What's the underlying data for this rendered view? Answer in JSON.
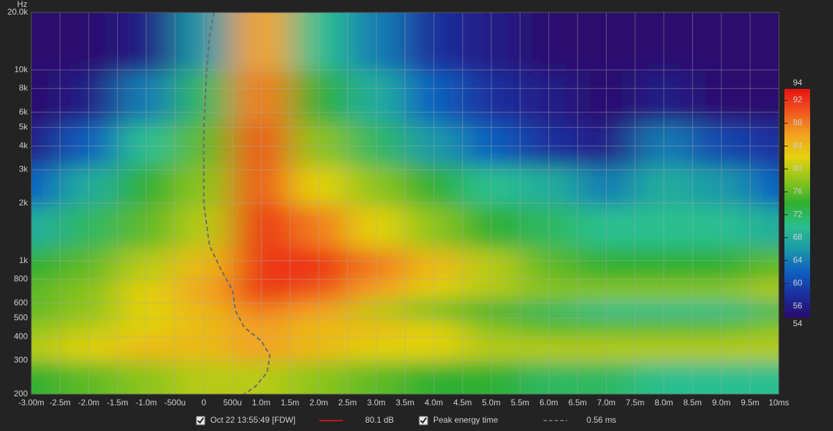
{
  "chart_data": {
    "type": "heatmap",
    "y_label": "Hz",
    "x": [
      -3,
      -2,
      -1,
      0,
      1,
      2,
      3,
      4,
      5,
      6,
      7,
      8,
      9,
      10
    ],
    "y": [
      250,
      350,
      450,
      550,
      700,
      900,
      1500,
      2500,
      4000,
      7000,
      14000
    ],
    "z": [
      [
        74,
        76,
        78,
        80,
        80,
        78,
        76,
        74,
        74,
        72,
        72,
        70,
        70,
        70
      ],
      [
        80,
        82,
        84,
        84,
        86,
        84,
        82,
        82,
        80,
        80,
        80,
        80,
        80,
        80
      ],
      [
        78,
        80,
        82,
        84,
        86,
        84,
        84,
        82,
        78,
        76,
        76,
        76,
        76,
        78
      ],
      [
        76,
        78,
        82,
        84,
        88,
        86,
        80,
        76,
        74,
        72,
        70,
        70,
        70,
        72
      ],
      [
        76,
        78,
        82,
        86,
        92,
        90,
        86,
        82,
        80,
        78,
        78,
        78,
        78,
        80
      ],
      [
        74,
        76,
        80,
        84,
        92,
        92,
        88,
        84,
        80,
        76,
        74,
        74,
        74,
        76
      ],
      [
        68,
        72,
        76,
        80,
        92,
        88,
        82,
        78,
        74,
        72,
        70,
        70,
        70,
        68
      ],
      [
        62,
        68,
        74,
        78,
        90,
        82,
        78,
        74,
        70,
        68,
        64,
        68,
        66,
        62
      ],
      [
        56,
        62,
        70,
        76,
        90,
        78,
        72,
        66,
        62,
        58,
        56,
        64,
        60,
        58
      ],
      [
        54,
        56,
        64,
        72,
        88,
        74,
        68,
        62,
        58,
        56,
        54,
        56,
        54,
        54
      ],
      [
        54,
        54,
        56,
        66,
        86,
        70,
        64,
        58,
        56,
        54,
        54,
        54,
        54,
        54
      ]
    ],
    "colors": [
      "#2a0a6e",
      "#1a2f9e",
      "#0f5fc0",
      "#1b9aa8",
      "#2bbf8f",
      "#2fb030",
      "#8cc41c",
      "#e2d210",
      "#f3a220",
      "#f0561e",
      "#e81212"
    ],
    "xlim": [
      -3,
      10
    ],
    "xticks": [
      {
        "value": -3,
        "label": "-3.00m"
      },
      {
        "value": -2.5,
        "label": "-2.5m"
      },
      {
        "value": -2,
        "label": "-2.0m"
      },
      {
        "value": -1.5,
        "label": "-1.5m"
      },
      {
        "value": -1,
        "label": "-1.0m"
      },
      {
        "value": -0.5,
        "label": "-500u"
      },
      0,
      {
        "value": 0.5,
        "label": "500u"
      },
      {
        "value": 1,
        "label": "1.0m"
      },
      {
        "value": 1.5,
        "label": "1.5m"
      },
      {
        "value": 2,
        "label": "2.0m"
      },
      {
        "value": 2.5,
        "label": "2.5m"
      },
      {
        "value": 3,
        "label": "3.0m"
      },
      {
        "value": 3.5,
        "label": "3.5m"
      },
      {
        "value": 4,
        "label": "4.0m"
      },
      {
        "value": 4.5,
        "label": "4.5m"
      },
      {
        "value": 5,
        "label": "5.0m"
      },
      {
        "value": 5.5,
        "label": "5.5m"
      },
      {
        "value": 6,
        "label": "6.0m"
      },
      {
        "value": 6.5,
        "label": "6.5m"
      },
      {
        "value": 7,
        "label": "7.0m"
      },
      {
        "value": 7.5,
        "label": "7.5m"
      },
      {
        "value": 8,
        "label": "8.0m"
      },
      {
        "value": 8.5,
        "label": "8.5m"
      },
      {
        "value": 9,
        "label": "9.0m"
      },
      {
        "value": 9.5,
        "label": "9.5m"
      },
      {
        "value": 10,
        "label": "10ms"
      }
    ],
    "ylim": [
      200,
      20000
    ],
    "log_y": true,
    "yticks": [
      200,
      300,
      400,
      500,
      600,
      800,
      {
        "value": 1000,
        "label": "1k"
      },
      {
        "value": 2000,
        "label": "2k"
      },
      {
        "value": 3000,
        "label": "3k"
      },
      {
        "value": 4000,
        "label": "4k"
      },
      {
        "value": 5000,
        "label": "5k"
      },
      {
        "value": 6000,
        "label": "6k"
      },
      {
        "value": 8000,
        "label": "8k"
      },
      {
        "value": 10000,
        "label": "10k"
      },
      {
        "value": 20000,
        "label": "20.0k"
      }
    ],
    "zlim": [
      54,
      94
    ],
    "zticks": [
      54,
      56,
      60,
      64,
      68,
      72,
      76,
      80,
      84,
      88,
      92,
      94
    ],
    "grid": true,
    "series": [
      {
        "name": "Oct 22 13:55:49 [FDW]",
        "color": "#c81818",
        "value": 80.1,
        "value_label": "80.1 dB"
      },
      {
        "name": "Peak energy time",
        "color": "#6a6a6a",
        "dashed": true,
        "value": 0.56,
        "value_label": "0.56 ms",
        "x": [
          0.18,
          0.1,
          0.05,
          0.0,
          0.0,
          0.1,
          0.3,
          0.5,
          0.55,
          0.7,
          1.0,
          1.15,
          1.1,
          0.9,
          0.7
        ],
        "y": [
          20000,
          15000,
          10000,
          5000,
          2000,
          1200,
          900,
          700,
          550,
          450,
          380,
          320,
          260,
          220,
          200
        ]
      }
    ]
  }
}
